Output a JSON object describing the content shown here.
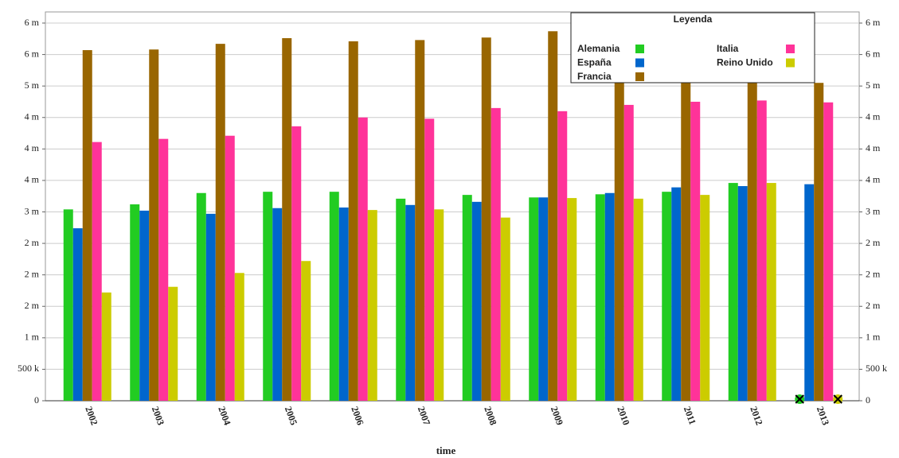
{
  "chart_data": {
    "type": "bar",
    "x_label": "time",
    "legend_title": "Leyenda",
    "categories": [
      "2002",
      "2003",
      "2004",
      "2005",
      "2006",
      "2007",
      "2008",
      "2009",
      "2010",
      "2011",
      "2012",
      "2013"
    ],
    "series": [
      {
        "name": "Alemania",
        "color": "#22cc22",
        "values": [
          3040000,
          3120000,
          3300000,
          3320000,
          3320000,
          3210000,
          3270000,
          3230000,
          3280000,
          3320000,
          3460000,
          null
        ]
      },
      {
        "name": "España",
        "color": "#0066cc",
        "values": [
          2740000,
          3020000,
          2970000,
          3060000,
          3070000,
          3110000,
          3160000,
          3230000,
          3300000,
          3390000,
          3410000,
          3440000
        ]
      },
      {
        "name": "Francia",
        "color": "#996600",
        "values": [
          5570000,
          5580000,
          5670000,
          5760000,
          5710000,
          5730000,
          5770000,
          5870000,
          5050000,
          5050000,
          5050000,
          5050000
        ]
      },
      {
        "name": "Italia",
        "color": "#ff3399",
        "values": [
          4110000,
          4160000,
          4210000,
          4360000,
          4500000,
          4480000,
          4650000,
          4600000,
          4700000,
          4750000,
          4770000,
          4740000
        ]
      },
      {
        "name": "Reino Unido",
        "color": "#cccc00",
        "values": [
          1720000,
          1810000,
          2030000,
          2220000,
          3030000,
          3040000,
          2910000,
          3220000,
          3210000,
          3270000,
          3460000,
          null
        ]
      }
    ],
    "ylim": [
      0,
      6000000
    ],
    "yticks": [
      {
        "value": 0,
        "label": "0"
      },
      {
        "value": 500000,
        "label": "500 k"
      },
      {
        "value": 1000000,
        "label": "1 m"
      },
      {
        "value": 1500000,
        "label": "2 m"
      },
      {
        "value": 2000000,
        "label": "2 m"
      },
      {
        "value": 2500000,
        "label": "2 m"
      },
      {
        "value": 3000000,
        "label": "3 m"
      },
      {
        "value": 3500000,
        "label": "4 m"
      },
      {
        "value": 4000000,
        "label": "4 m"
      },
      {
        "value": 4500000,
        "label": "4 m"
      },
      {
        "value": 5000000,
        "label": "5 m"
      },
      {
        "value": 5500000,
        "label": "6 m"
      },
      {
        "value": 6000000,
        "label": "6 m"
      }
    ],
    "grid": true
  }
}
